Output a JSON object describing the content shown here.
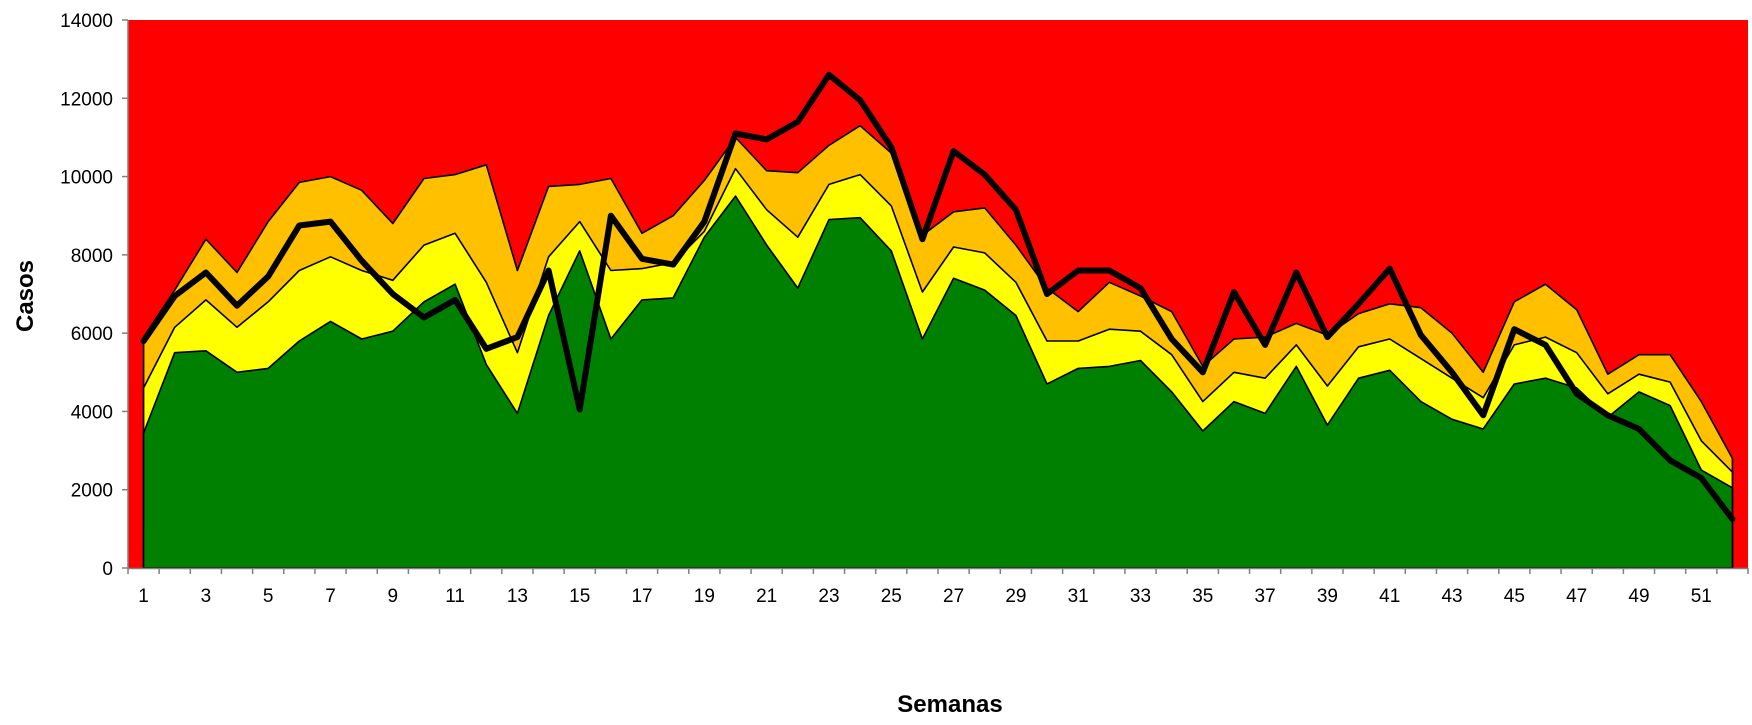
{
  "chart_data": {
    "type": "area",
    "xlabel": "Semanas",
    "ylabel": "Casos",
    "ylim": [
      0,
      14000
    ],
    "xlim": [
      0.5,
      52.5
    ],
    "yticks": [
      0,
      2000,
      4000,
      6000,
      8000,
      10000,
      12000,
      14000
    ],
    "xticks": [
      1,
      3,
      5,
      7,
      9,
      11,
      13,
      15,
      17,
      19,
      21,
      23,
      25,
      27,
      29,
      31,
      33,
      35,
      37,
      39,
      41,
      43,
      45,
      47,
      49,
      51
    ],
    "grid": false,
    "legend": "none",
    "x": [
      1,
      2,
      3,
      4,
      5,
      6,
      7,
      8,
      9,
      10,
      11,
      12,
      13,
      14,
      15,
      16,
      17,
      18,
      19,
      20,
      21,
      22,
      23,
      24,
      25,
      26,
      27,
      28,
      29,
      30,
      31,
      32,
      33,
      34,
      35,
      36,
      37,
      38,
      39,
      40,
      41,
      42,
      43,
      44,
      45,
      46,
      47,
      48,
      49,
      50,
      51,
      52
    ],
    "series": [
      {
        "color": "#ff0000",
        "kind": "background-area",
        "values": [
          14000,
          14000,
          14000,
          14000,
          14000,
          14000,
          14000,
          14000,
          14000,
          14000,
          14000,
          14000,
          14000,
          14000,
          14000,
          14000,
          14000,
          14000,
          14000,
          14000,
          14000,
          14000,
          14000,
          14000,
          14000,
          14000,
          14000,
          14000,
          14000,
          14000,
          14000,
          14000,
          14000,
          14000,
          14000,
          14000,
          14000,
          14000,
          14000,
          14000,
          14000,
          14000,
          14000,
          14000,
          14000,
          14000,
          14000,
          14000,
          14000,
          14000,
          14000,
          14000
        ]
      },
      {
        "color": "#ffc000",
        "kind": "area",
        "values": [
          5900,
          7100,
          8400,
          7550,
          8850,
          9850,
          10000,
          9650,
          8800,
          9950,
          10050,
          10300,
          7600,
          9750,
          9800,
          9950,
          8550,
          9000,
          9900,
          11000,
          10150,
          10100,
          10800,
          11300,
          10600,
          8500,
          9100,
          9200,
          8250,
          7150,
          6550,
          7300,
          6950,
          6550,
          5150,
          5850,
          5900,
          6250,
          5950,
          6500,
          6750,
          6650,
          6000,
          5000,
          6800,
          7250,
          6600,
          4950,
          5450,
          5450,
          4250,
          2800
        ]
      },
      {
        "color": "#ffff00",
        "kind": "area",
        "values": [
          4600,
          6150,
          6850,
          6150,
          6800,
          7600,
          7950,
          7600,
          7350,
          8250,
          8550,
          7300,
          5500,
          7950,
          8850,
          7600,
          7650,
          7800,
          8600,
          10200,
          9150,
          8450,
          9800,
          10050,
          9250,
          7050,
          8200,
          8050,
          7300,
          5800,
          5800,
          6100,
          6050,
          5450,
          4250,
          5000,
          4850,
          5700,
          4650,
          5650,
          5850,
          5350,
          4850,
          4350,
          5700,
          5900,
          5500,
          4450,
          4950,
          4750,
          3250,
          2450
        ]
      },
      {
        "color": "#008000",
        "kind": "area",
        "values": [
          3450,
          5500,
          5550,
          5000,
          5100,
          5800,
          6300,
          5850,
          6050,
          6800,
          7250,
          5200,
          3950,
          6450,
          8100,
          5850,
          6850,
          6900,
          8450,
          9500,
          8250,
          7150,
          8900,
          8950,
          8100,
          5850,
          7400,
          7100,
          6450,
          4700,
          5100,
          5150,
          5300,
          4500,
          3500,
          4250,
          3950,
          5150,
          3650,
          4850,
          5050,
          4250,
          3800,
          3550,
          4700,
          4850,
          4600,
          3850,
          4500,
          4150,
          2500,
          2050
        ]
      },
      {
        "color": "#000000",
        "kind": "line",
        "values": [
          5800,
          6950,
          7550,
          6700,
          7450,
          8750,
          8850,
          7850,
          7000,
          6400,
          6850,
          5600,
          5900,
          7600,
          4050,
          9000,
          7900,
          7750,
          8850,
          11100,
          10950,
          11400,
          12600,
          11950,
          10750,
          8400,
          10650,
          10050,
          9150,
          7000,
          7600,
          7600,
          7150,
          5850,
          5000,
          7050,
          5700,
          7550,
          5900,
          6750,
          7650,
          5950,
          5000,
          3900,
          6100,
          5700,
          4450,
          3900,
          3550,
          2750,
          2300,
          1250
        ]
      }
    ]
  }
}
